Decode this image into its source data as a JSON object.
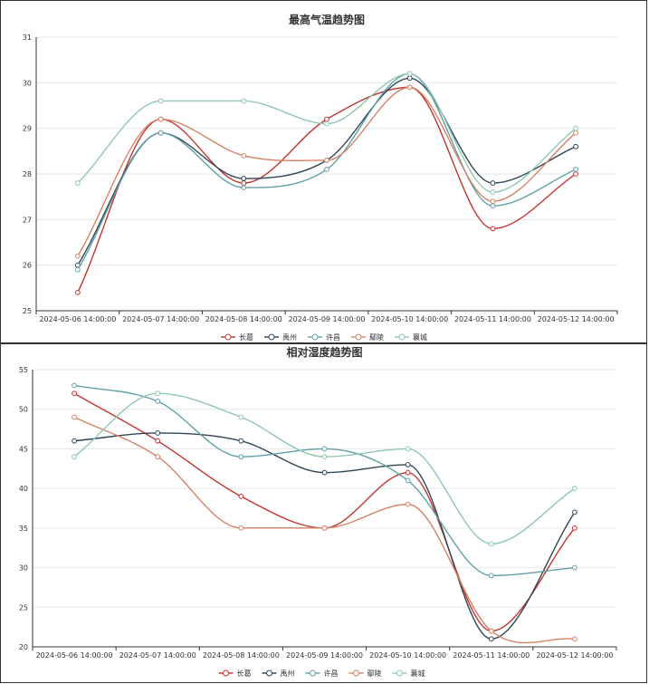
{
  "chart_data": [
    {
      "type": "line",
      "title": "最高气温趋势图",
      "categories": [
        "2024-05-06 14:00:00",
        "2024-05-07 14:00:00",
        "2024-05-08 14:00:00",
        "2024-05-09 14:00:00",
        "2024-05-10 14:00:00",
        "2024-05-11 14:00:00",
        "2024-05-12 14:00:00"
      ],
      "ylim": [
        25,
        31
      ],
      "yticks": [
        25,
        26,
        27,
        28,
        29,
        30,
        31
      ],
      "smooth": true,
      "legend_position": "bottom-center",
      "series": [
        {
          "name": "长葛",
          "color": "#c23531",
          "values": [
            25.4,
            29.2,
            27.8,
            29.2,
            29.9,
            26.8,
            28.0
          ]
        },
        {
          "name": "禹州",
          "color": "#2f4554",
          "values": [
            26.0,
            28.9,
            27.9,
            28.3,
            30.1,
            27.8,
            28.6
          ]
        },
        {
          "name": "许昌",
          "color": "#61a0a8",
          "values": [
            25.9,
            28.9,
            27.7,
            28.1,
            30.2,
            27.3,
            28.1
          ]
        },
        {
          "name": "鄢陵",
          "color": "#d48265",
          "values": [
            26.2,
            29.2,
            28.4,
            28.3,
            29.9,
            27.4,
            28.9
          ]
        },
        {
          "name": "襄城",
          "color": "#91c7ae",
          "values": [
            27.8,
            29.6,
            29.6,
            29.1,
            30.2,
            27.6,
            29.0
          ]
        }
      ]
    },
    {
      "type": "line",
      "title": "相对湿度趋势图",
      "categories": [
        "2024-05-06 14:00:00",
        "2024-05-07 14:00:00",
        "2024-05-08 14:00:00",
        "2024-05-09 14:00:00",
        "2024-05-10 14:00:00",
        "2024-05-11 14:00:00",
        "2024-05-12 14:00:00"
      ],
      "ylim": [
        20,
        55
      ],
      "yticks": [
        20,
        25,
        30,
        35,
        40,
        45,
        50,
        55
      ],
      "smooth": true,
      "legend_position": "bottom-center",
      "series": [
        {
          "name": "长葛",
          "color": "#c23531",
          "values": [
            52,
            46,
            39,
            35,
            42,
            22,
            35
          ]
        },
        {
          "name": "禹州",
          "color": "#2f4554",
          "values": [
            46,
            47,
            46,
            42,
            43,
            21,
            37
          ]
        },
        {
          "name": "许昌",
          "color": "#61a0a8",
          "values": [
            53,
            51,
            44,
            45,
            41,
            29,
            30
          ]
        },
        {
          "name": "鄢陵",
          "color": "#d48265",
          "values": [
            49,
            44,
            35,
            35,
            38,
            22,
            21
          ]
        },
        {
          "name": "襄城",
          "color": "#91c7ae",
          "values": [
            44,
            52,
            49,
            44,
            45,
            33,
            40
          ]
        }
      ]
    }
  ]
}
